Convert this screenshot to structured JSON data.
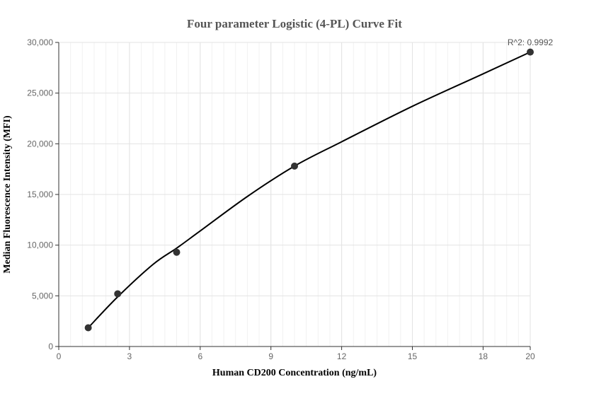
{
  "chart_data": {
    "type": "scatter",
    "title": "Four parameter Logistic (4-PL) Curve Fit",
    "xlabel": "Human CD200 Concentration (ng/mL)",
    "ylabel": "Median Fluorescence Intensity (MFI)",
    "xlim": [
      0,
      20
    ],
    "ylim": [
      0,
      30000
    ],
    "x_ticks": [
      0,
      3,
      6,
      9,
      12,
      15,
      18,
      20
    ],
    "y_ticks": [
      0,
      5000,
      10000,
      15000,
      20000,
      25000,
      30000
    ],
    "y_tick_labels": [
      "0",
      "5,000",
      "10,000",
      "15,000",
      "20,000",
      "25,000",
      "30,000"
    ],
    "grid": true,
    "series": [
      {
        "type": "scatter",
        "x": [
          1.25,
          2.5,
          5,
          10,
          20
        ],
        "y": [
          1850,
          5200,
          9300,
          17800,
          29050
        ],
        "color": "#333333"
      },
      {
        "type": "line",
        "x": [
          1.25,
          2.5,
          4,
          5,
          6,
          8,
          10,
          12,
          15,
          18,
          20
        ],
        "y": [
          1850,
          4900,
          8100,
          9700,
          11400,
          14800,
          17800,
          20200,
          23700,
          26900,
          29050
        ],
        "color": "#000000"
      }
    ],
    "annotation": "R^2: 0.9992"
  }
}
